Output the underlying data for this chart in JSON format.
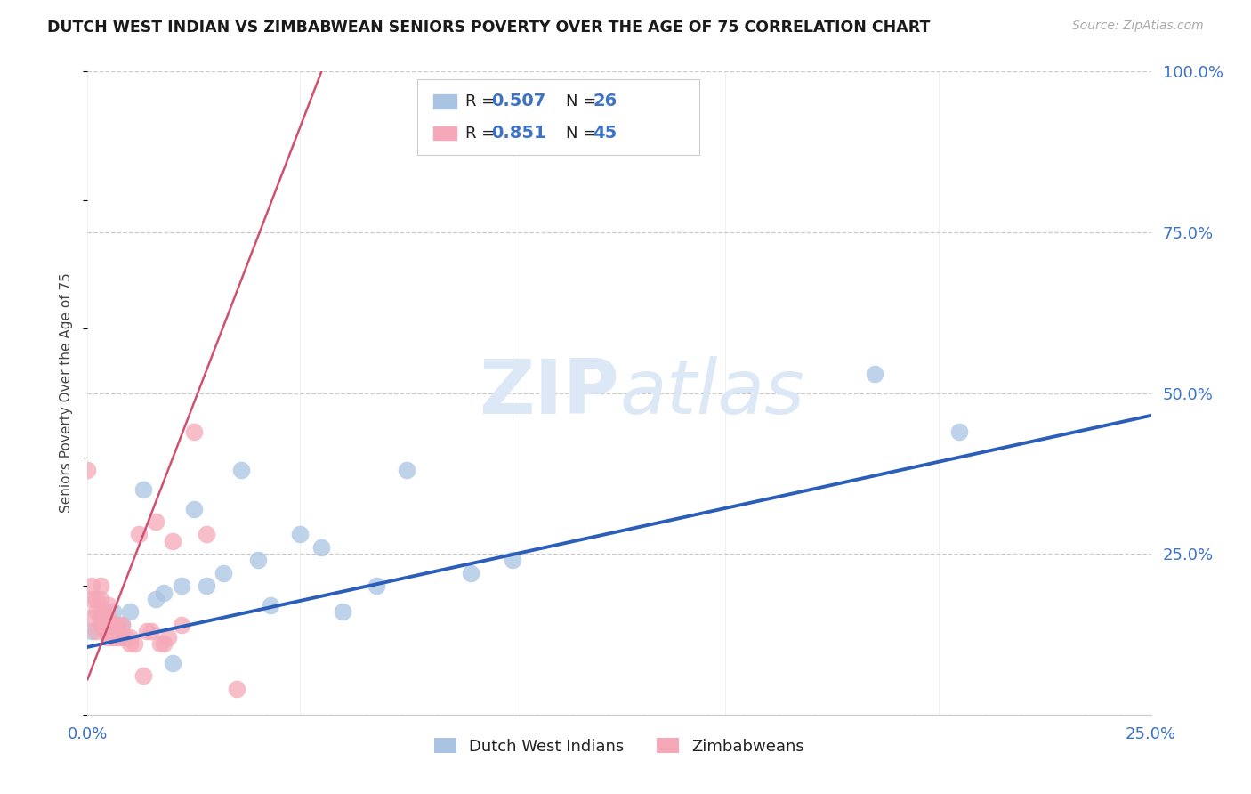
{
  "title": "DUTCH WEST INDIAN VS ZIMBABWEAN SENIORS POVERTY OVER THE AGE OF 75 CORRELATION CHART",
  "source": "Source: ZipAtlas.com",
  "ylabel": "Seniors Poverty Over the Age of 75",
  "xlim": [
    0.0,
    0.25
  ],
  "ylim": [
    0.0,
    1.0
  ],
  "xticks": [
    0.0,
    0.05,
    0.1,
    0.15,
    0.2,
    0.25
  ],
  "xtick_labels": [
    "0.0%",
    "",
    "",
    "",
    "",
    "25.0%"
  ],
  "yticks_right": [
    0.0,
    0.25,
    0.5,
    0.75,
    1.0
  ],
  "ytick_labels_right": [
    "",
    "25.0%",
    "50.0%",
    "75.0%",
    "100.0%"
  ],
  "dutch_R": "0.507",
  "dutch_N": "26",
  "zimb_R": "0.851",
  "zimb_N": "45",
  "dutch_scatter_color": "#a8c4e2",
  "dutch_line_color": "#2b5eb8",
  "zimb_scatter_color": "#f5a8b8",
  "zimb_line_color": "#d05070",
  "watermark_color": "#dce8f5",
  "grid_color": "#cccccc",
  "bg_color": "#ffffff",
  "legend_labels": [
    "Dutch West Indians",
    "Zimbabweans"
  ],
  "dutch_scatter_x": [
    0.001,
    0.003,
    0.005,
    0.006,
    0.008,
    0.01,
    0.013,
    0.016,
    0.018,
    0.02,
    0.022,
    0.025,
    0.028,
    0.032,
    0.036,
    0.04,
    0.043,
    0.05,
    0.055,
    0.06,
    0.068,
    0.075,
    0.09,
    0.1,
    0.185,
    0.205
  ],
  "dutch_scatter_y": [
    0.13,
    0.15,
    0.14,
    0.16,
    0.14,
    0.16,
    0.35,
    0.18,
    0.19,
    0.08,
    0.2,
    0.32,
    0.2,
    0.22,
    0.38,
    0.24,
    0.17,
    0.28,
    0.26,
    0.16,
    0.2,
    0.38,
    0.22,
    0.24,
    0.53,
    0.44
  ],
  "zimb_scatter_x": [
    0.0,
    0.001,
    0.001,
    0.001,
    0.002,
    0.002,
    0.002,
    0.003,
    0.003,
    0.003,
    0.003,
    0.004,
    0.004,
    0.004,
    0.004,
    0.005,
    0.005,
    0.005,
    0.005,
    0.005,
    0.006,
    0.006,
    0.006,
    0.007,
    0.007,
    0.007,
    0.008,
    0.008,
    0.009,
    0.01,
    0.01,
    0.011,
    0.012,
    0.013,
    0.014,
    0.015,
    0.016,
    0.017,
    0.018,
    0.019,
    0.02,
    0.022,
    0.025,
    0.028,
    0.035
  ],
  "zimb_scatter_y": [
    0.38,
    0.15,
    0.18,
    0.2,
    0.13,
    0.16,
    0.18,
    0.14,
    0.16,
    0.18,
    0.2,
    0.13,
    0.14,
    0.15,
    0.16,
    0.12,
    0.13,
    0.14,
    0.15,
    0.17,
    0.12,
    0.13,
    0.14,
    0.12,
    0.13,
    0.14,
    0.12,
    0.14,
    0.12,
    0.12,
    0.11,
    0.11,
    0.28,
    0.06,
    0.13,
    0.13,
    0.3,
    0.11,
    0.11,
    0.12,
    0.27,
    0.14,
    0.44,
    0.28,
    0.04
  ],
  "dutch_line_x0": 0.0,
  "dutch_line_x1": 0.25,
  "dutch_line_y0": 0.105,
  "dutch_line_y1": 0.465,
  "zimb_line_x0": 0.0,
  "zimb_line_x1": 0.055,
  "zimb_line_y0": 0.055,
  "zimb_line_y1": 1.0
}
